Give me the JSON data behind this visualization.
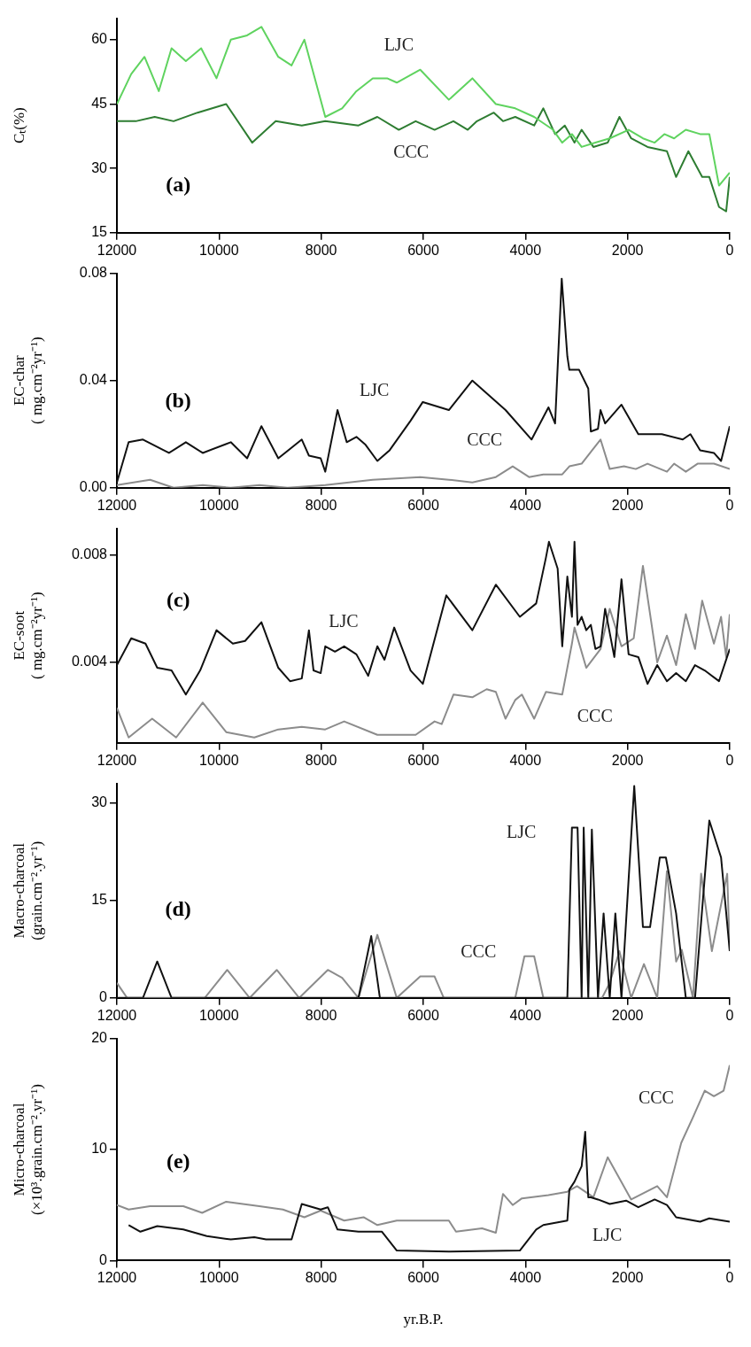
{
  "chart_data": [
    {
      "type": "line",
      "ylabel": "Cₜ(%)",
      "xlim": [
        12000,
        0
      ],
      "xticks": [
        12000,
        10000,
        8000,
        6000,
        4000,
        2000,
        0
      ],
      "ylim": [
        15,
        65
      ],
      "yticks": [
        15,
        30,
        45,
        60
      ],
      "grid": false,
      "legend": false,
      "marker": "none",
      "line_style": "solid",
      "annotations": [
        "(a)"
      ],
      "series": [
        {
          "name": "LJC",
          "color": "#5fd35f",
          "x": [
            12000,
            11720,
            11460,
            11180,
            10930,
            10650,
            10350,
            10050,
            9770,
            9450,
            9170,
            8840,
            8580,
            8330,
            7920,
            7590,
            7310,
            6990,
            6710,
            6520,
            6060,
            5500,
            5040,
            4580,
            4200,
            3830,
            3460,
            3280,
            3090,
            2900,
            2630,
            2350,
            1980,
            1700,
            1470,
            1280,
            1090,
            860,
            580,
            400,
            210,
            0
          ],
          "values": [
            45,
            52,
            56,
            48,
            58,
            55,
            58,
            51,
            60,
            61,
            63,
            56,
            54,
            60,
            42,
            44,
            48,
            51,
            51,
            50,
            53,
            46,
            51,
            45,
            44,
            42,
            39,
            36,
            38,
            35,
            36,
            37,
            39,
            37,
            36,
            38,
            37,
            39,
            38,
            38,
            26,
            29
          ]
        },
        {
          "name": "CCC",
          "color": "#2e7d32",
          "x": [
            12000,
            11630,
            11260,
            10890,
            10420,
            9860,
            9350,
            8890,
            8380,
            7920,
            7270,
            6900,
            6480,
            6150,
            5780,
            5410,
            5130,
            4950,
            4620,
            4440,
            4200,
            3830,
            3650,
            3420,
            3230,
            3040,
            2900,
            2670,
            2390,
            2160,
            1930,
            1610,
            1230,
            1050,
            810,
            540,
            400,
            210,
            70,
            0
          ],
          "values": [
            41,
            41,
            42,
            41,
            43,
            45,
            36,
            41,
            40,
            41,
            40,
            42,
            39,
            41,
            39,
            41,
            39,
            41,
            43,
            41,
            42,
            40,
            44,
            38,
            40,
            36,
            39,
            35,
            36,
            42,
            37,
            35,
            34,
            28,
            34,
            28,
            28,
            21,
            20,
            28
          ]
        }
      ]
    },
    {
      "type": "line",
      "ylabel": "EC-char\n( mg.cm⁻²yr⁻¹)",
      "xlim": [
        12000,
        0
      ],
      "xticks": [
        12000,
        10000,
        8000,
        6000,
        4000,
        2000,
        0
      ],
      "ylim": [
        0,
        0.08
      ],
      "yticks": [
        {
          "value": 0,
          "label": "0.00"
        },
        {
          "value": 0.04,
          "label": "0.04"
        },
        {
          "value": 0.08,
          "label": "0.08"
        }
      ],
      "grid": false,
      "legend": false,
      "marker": "none",
      "line_style": "solid",
      "annotations": [
        "(b)"
      ],
      "series": [
        {
          "name": "LJC",
          "color": "#111111",
          "x": [
            12000,
            11770,
            11490,
            10980,
            10650,
            10320,
            9770,
            9450,
            9170,
            8840,
            8380,
            8240,
            8010,
            7920,
            7680,
            7500,
            7310,
            7130,
            6900,
            6660,
            6250,
            6010,
            5500,
            5040,
            4390,
            3880,
            3550,
            3420,
            3290,
            3180,
            3140,
            2950,
            2770,
            2720,
            2580,
            2530,
            2440,
            2120,
            1790,
            1330,
            920,
            770,
            580,
            310,
            170,
            0
          ],
          "values": [
            0.002,
            0.017,
            0.018,
            0.013,
            0.017,
            0.013,
            0.017,
            0.011,
            0.023,
            0.011,
            0.018,
            0.012,
            0.011,
            0.006,
            0.029,
            0.017,
            0.019,
            0.016,
            0.01,
            0.014,
            0.025,
            0.032,
            0.029,
            0.04,
            0.029,
            0.018,
            0.03,
            0.024,
            0.078,
            0.049,
            0.044,
            0.044,
            0.037,
            0.021,
            0.022,
            0.029,
            0.024,
            0.031,
            0.02,
            0.02,
            0.018,
            0.02,
            0.014,
            0.013,
            0.01,
            0.023
          ]
        },
        {
          "name": "CCC",
          "color": "#8c8c8c",
          "x": [
            12000,
            11350,
            10890,
            10320,
            9770,
            9210,
            8660,
            7920,
            6990,
            6060,
            5500,
            5040,
            4580,
            4250,
            3930,
            3650,
            3280,
            3140,
            2900,
            2530,
            2350,
            2070,
            1840,
            1610,
            1230,
            1090,
            860,
            630,
            310,
            0
          ],
          "values": [
            0.001,
            0.003,
            0,
            0.001,
            0,
            0.001,
            0,
            0.001,
            0.003,
            0.004,
            0.003,
            0.002,
            0.004,
            0.008,
            0.004,
            0.005,
            0.005,
            0.008,
            0.009,
            0.018,
            0.007,
            0.008,
            0.007,
            0.009,
            0.006,
            0.009,
            0.006,
            0.009,
            0.009,
            0.007
          ]
        }
      ]
    },
    {
      "type": "line",
      "ylabel": "EC-soot\n( mg.cm⁻²yr⁻¹)",
      "xlim": [
        12000,
        0
      ],
      "xticks": [
        12000,
        10000,
        8000,
        6000,
        4000,
        2000,
        0
      ],
      "ylim": [
        0.001,
        0.009
      ],
      "yticks": [
        0.004,
        0.008
      ],
      "grid": false,
      "legend": false,
      "marker": "none",
      "line_style": "solid",
      "annotations": [
        "(c)"
      ],
      "series": [
        {
          "name": "LJC",
          "color": "#111111",
          "x": [
            12000,
            11720,
            11440,
            11210,
            10930,
            10650,
            10370,
            10050,
            9730,
            9490,
            9170,
            8840,
            8610,
            8380,
            8240,
            8150,
            8010,
            7920,
            7730,
            7550,
            7310,
            7080,
            6900,
            6760,
            6570,
            6250,
            6010,
            5550,
            5040,
            4580,
            4110,
            3790,
            3600,
            3540,
            3370,
            3280,
            3180,
            3090,
            3040,
            2980,
            2900,
            2810,
            2720,
            2630,
            2530,
            2440,
            2260,
            2120,
            1980,
            1790,
            1610,
            1420,
            1230,
            1050,
            860,
            680,
            490,
            210,
            0
          ],
          "values": [
            0.0039,
            0.0049,
            0.0047,
            0.0038,
            0.0037,
            0.0028,
            0.0037,
            0.0052,
            0.0047,
            0.0048,
            0.0055,
            0.0038,
            0.0033,
            0.0034,
            0.0052,
            0.0037,
            0.0036,
            0.0046,
            0.0044,
            0.0046,
            0.0043,
            0.0035,
            0.0046,
            0.0041,
            0.0053,
            0.0037,
            0.0032,
            0.0065,
            0.0052,
            0.0069,
            0.0057,
            0.0062,
            0.0079,
            0.0085,
            0.0075,
            0.0046,
            0.0072,
            0.0057,
            0.0085,
            0.0054,
            0.0057,
            0.0052,
            0.0054,
            0.0045,
            0.0046,
            0.006,
            0.0042,
            0.0071,
            0.0043,
            0.0042,
            0.0032,
            0.0039,
            0.0033,
            0.0036,
            0.0033,
            0.0039,
            0.0037,
            0.0033,
            0.0045
          ]
        },
        {
          "name": "CCC",
          "color": "#8c8c8c",
          "x": [
            12000,
            11770,
            11310,
            10840,
            10320,
            9860,
            9310,
            8840,
            8380,
            7920,
            7550,
            6900,
            6150,
            5780,
            5640,
            5410,
            5040,
            4760,
            4580,
            4390,
            4200,
            4070,
            3830,
            3600,
            3280,
            3090,
            3040,
            2810,
            2530,
            2350,
            2120,
            1880,
            1700,
            1420,
            1230,
            1050,
            860,
            680,
            540,
            310,
            170,
            70,
            0
          ],
          "values": [
            0.0023,
            0.0012,
            0.0019,
            0.0012,
            0.0025,
            0.0014,
            0.0012,
            0.0015,
            0.0016,
            0.0015,
            0.0018,
            0.0013,
            0.0013,
            0.0018,
            0.0017,
            0.0028,
            0.0027,
            0.003,
            0.0029,
            0.0019,
            0.0026,
            0.0028,
            0.0019,
            0.0029,
            0.0028,
            0.0047,
            0.0053,
            0.0038,
            0.0045,
            0.006,
            0.0046,
            0.0049,
            0.0076,
            0.004,
            0.005,
            0.0039,
            0.0058,
            0.0045,
            0.0063,
            0.0047,
            0.0057,
            0.0042,
            0.0058
          ]
        }
      ]
    },
    {
      "type": "line",
      "ylabel": "Macro-charcoal\n(grain.cm⁻².yr⁻¹)",
      "xlim": [
        12000,
        0
      ],
      "xticks": [
        12000,
        10000,
        8000,
        6000,
        4000,
        2000,
        0
      ],
      "ylim": [
        0,
        33
      ],
      "yticks": [
        0,
        15,
        30
      ],
      "grid": false,
      "legend": false,
      "marker": "none",
      "line_style": "solid",
      "annotations": [
        "(d)"
      ],
      "series": [
        {
          "name": "LJC",
          "color": "#111111",
          "x": [
            12000,
            11490,
            11210,
            10930,
            7270,
            7020,
            6850,
            3180,
            3090,
            2980,
            2900,
            2860,
            2770,
            2700,
            2580,
            2470,
            2350,
            2240,
            2120,
            1870,
            1700,
            1560,
            1370,
            1250,
            1050,
            860,
            680,
            400,
            170,
            0
          ],
          "values": [
            0,
            0,
            5.6,
            0,
            0,
            9.5,
            0,
            0,
            26.2,
            26.2,
            0,
            26.2,
            0,
            25.9,
            0,
            13,
            0,
            13,
            0,
            32.6,
            10.9,
            10.9,
            21.6,
            21.6,
            13,
            0,
            0,
            27.3,
            21.6,
            7.2
          ]
        },
        {
          "name": "CCC",
          "color": "#8c8c8c",
          "x": [
            12000,
            11800,
            10280,
            9840,
            9400,
            8870,
            8430,
            7870,
            7590,
            7270,
            6900,
            6520,
            6060,
            5780,
            5600,
            4200,
            4020,
            3830,
            3650,
            2500,
            2350,
            2160,
            1930,
            1680,
            1420,
            1230,
            1050,
            940,
            720,
            560,
            350,
            50,
            0
          ],
          "values": [
            2.3,
            0,
            0,
            4.3,
            0,
            4.3,
            0,
            4.3,
            3.1,
            0,
            9.7,
            0,
            3.3,
            3.3,
            0,
            0,
            6.4,
            6.4,
            0,
            0,
            2.3,
            7.2,
            0,
            5.2,
            0,
            19.5,
            5.6,
            7.4,
            0,
            19.1,
            7.2,
            19.1,
            7.2
          ]
        }
      ]
    },
    {
      "type": "line",
      "ylabel": "Micro-charcoal\n(×10³.grain.cm⁻².yr⁻¹)",
      "xlabel": "yr.B.P.",
      "xlim": [
        12000,
        0
      ],
      "xticks": [
        12000,
        10000,
        8000,
        6000,
        4000,
        2000,
        0
      ],
      "ylim": [
        0,
        20
      ],
      "yticks": [
        0,
        10,
        20
      ],
      "grid": false,
      "legend": false,
      "marker": "none",
      "line_style": "solid",
      "annotations": [
        "(e)"
      ],
      "series": [
        {
          "name": "LJC",
          "color": "#111111",
          "x": [
            11770,
            11540,
            11210,
            10700,
            10240,
            9770,
            9310,
            9080,
            8580,
            8380,
            8010,
            7870,
            7680,
            7270,
            6810,
            6520,
            5500,
            4110,
            3790,
            3650,
            3180,
            3140,
            3040,
            2900,
            2830,
            2770,
            2720,
            2580,
            2350,
            2030,
            1790,
            1470,
            1230,
            1050,
            580,
            400,
            0
          ],
          "values": [
            3.2,
            2.6,
            3.1,
            2.8,
            2.2,
            1.9,
            2.1,
            1.9,
            1.9,
            5.1,
            4.6,
            4.8,
            2.8,
            2.6,
            2.6,
            0.9,
            0.8,
            0.9,
            2.8,
            3.2,
            3.6,
            6.4,
            7.1,
            8.5,
            11.6,
            5.7,
            5.7,
            5.5,
            5.1,
            5.4,
            4.8,
            5.5,
            5.0,
            3.9,
            3.5,
            3.8,
            3.5
          ]
        },
        {
          "name": "CCC",
          "color": "#8c8c8c",
          "x": [
            12000,
            11770,
            11350,
            10700,
            10330,
            9860,
            9210,
            8750,
            8330,
            8010,
            7550,
            7170,
            6900,
            6520,
            5500,
            5360,
            4850,
            4580,
            4440,
            4250,
            4070,
            3550,
            3180,
            2990,
            2670,
            2390,
            1930,
            1420,
            1230,
            950,
            720,
            490,
            310,
            120,
            0
          ],
          "values": [
            5.0,
            4.6,
            4.9,
            4.9,
            4.3,
            5.3,
            4.9,
            4.6,
            3.9,
            4.5,
            3.6,
            3.9,
            3.2,
            3.6,
            3.6,
            2.6,
            2.9,
            2.5,
            6.0,
            5.0,
            5.6,
            5.9,
            6.2,
            6.7,
            5.7,
            9.3,
            5.5,
            6.7,
            5.7,
            10.6,
            12.9,
            15.3,
            14.8,
            15.3,
            17.6
          ]
        }
      ]
    }
  ]
}
